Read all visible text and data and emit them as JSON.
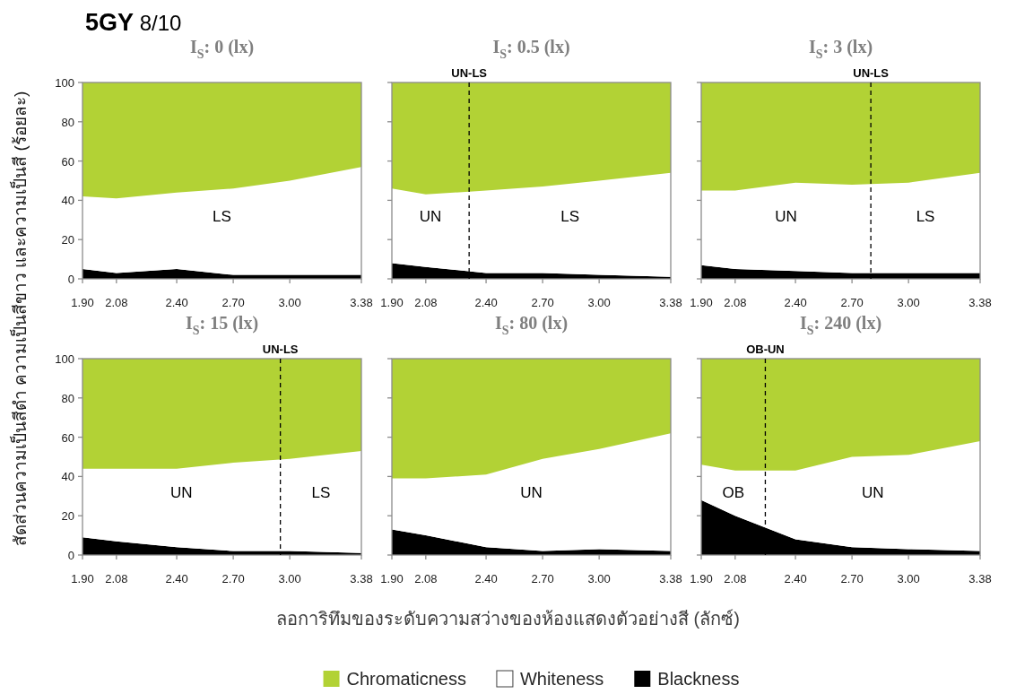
{
  "chart_data": [
    {
      "type": "area",
      "stacked": true,
      "title": "5GY 8/10",
      "subtitle": "I$_{S}$: 0 (lx)",
      "ylabel": "สัดส่วนความเป็นสีดำ ความเป็นสีขาว และความเป็นสี (ร้อยละ)",
      "x": [
        1.9,
        2.08,
        2.4,
        2.7,
        3.0,
        3.38
      ],
      "xlim": [
        1.9,
        3.38
      ],
      "xticks": [
        {
          "value": 1.9,
          "label": "1.90"
        },
        {
          "value": 2.08,
          "label": "2.08"
        },
        {
          "value": 2.4,
          "label": "2.40"
        },
        {
          "value": 2.7,
          "label": "2.70"
        },
        {
          "value": 3.0,
          "label": "3.00"
        },
        {
          "value": 3.38,
          "label": "3.38"
        }
      ],
      "ylim": [
        0,
        100
      ],
      "yticks": [
        0,
        20,
        40,
        60,
        80,
        100
      ],
      "series": [
        {
          "color": "#000000",
          "values": [
            5,
            3,
            5,
            2,
            2,
            2
          ]
        },
        {
          "color": "#ffffff",
          "values": [
            37,
            38,
            39,
            44,
            48,
            55
          ]
        },
        {
          "color": "#b2d235",
          "values": [
            58,
            59,
            56,
            54,
            50,
            43
          ]
        }
      ],
      "annotations": [
        "LS"
      ]
    },
    {
      "type": "area",
      "stacked": true,
      "subtitle": "I$_{S}$: 0.5 (lx)",
      "x": [
        1.9,
        2.08,
        2.4,
        2.7,
        3.0,
        3.38
      ],
      "xlim": [
        1.9,
        3.38
      ],
      "xticks": [
        {
          "value": 1.9,
          "label": "1.90"
        },
        {
          "value": 2.08,
          "label": "2.08"
        },
        {
          "value": 2.4,
          "label": "2.40"
        },
        {
          "value": 2.7,
          "label": "2.70"
        },
        {
          "value": 3.0,
          "label": "3.00"
        },
        {
          "value": 3.38,
          "label": "3.38"
        }
      ],
      "ylim": [
        0,
        100
      ],
      "yticks": [
        0,
        20,
        40,
        60,
        80,
        100
      ],
      "tick_labels": "x",
      "series": [
        {
          "color": "#000000",
          "values": [
            8,
            6,
            3,
            3,
            2,
            1
          ]
        },
        {
          "color": "#ffffff",
          "values": [
            38,
            37,
            42,
            44,
            48,
            53
          ]
        },
        {
          "color": "#b2d235",
          "values": [
            54,
            57,
            55,
            53,
            50,
            46
          ]
        }
      ],
      "ref_lines": [
        {
          "axis": "x",
          "value": 2.31,
          "label": "UN-LS",
          "color": "#000000",
          "line_style": "dashed"
        }
      ],
      "annotations": [
        "UN",
        "LS"
      ]
    },
    {
      "type": "area",
      "stacked": true,
      "subtitle": "I$_{S}$: 3 (lx)",
      "x": [
        1.9,
        2.08,
        2.4,
        2.7,
        3.0,
        3.38
      ],
      "xlim": [
        1.9,
        3.38
      ],
      "xticks": [
        {
          "value": 1.9,
          "label": "1.90"
        },
        {
          "value": 2.08,
          "label": "2.08"
        },
        {
          "value": 2.4,
          "label": "2.40"
        },
        {
          "value": 2.7,
          "label": "2.70"
        },
        {
          "value": 3.0,
          "label": "3.00"
        },
        {
          "value": 3.38,
          "label": "3.38"
        }
      ],
      "ylim": [
        0,
        100
      ],
      "yticks": [
        0,
        20,
        40,
        60,
        80,
        100
      ],
      "tick_labels": "x",
      "series": [
        {
          "color": "#000000",
          "values": [
            7,
            5,
            4,
            3,
            3,
            3
          ]
        },
        {
          "color": "#ffffff",
          "values": [
            38,
            40,
            45,
            45,
            46,
            51
          ]
        },
        {
          "color": "#b2d235",
          "values": [
            55,
            55,
            51,
            52,
            51,
            46
          ]
        }
      ],
      "ref_lines": [
        {
          "axis": "x",
          "value": 2.8,
          "label": "UN-LS",
          "color": "#000000",
          "line_style": "dashed"
        }
      ],
      "annotations": [
        "UN",
        "LS"
      ]
    },
    {
      "type": "area",
      "stacked": true,
      "subtitle": "I$_{S}$: 15 (lx)",
      "x": [
        1.9,
        2.08,
        2.4,
        2.7,
        3.0,
        3.38
      ],
      "xlim": [
        1.9,
        3.38
      ],
      "xticks": [
        {
          "value": 1.9,
          "label": "1.90"
        },
        {
          "value": 2.08,
          "label": "2.08"
        },
        {
          "value": 2.4,
          "label": "2.40"
        },
        {
          "value": 2.7,
          "label": "2.70"
        },
        {
          "value": 3.0,
          "label": "3.00"
        },
        {
          "value": 3.38,
          "label": "3.38"
        }
      ],
      "ylim": [
        0,
        100
      ],
      "yticks": [
        0,
        20,
        40,
        60,
        80,
        100
      ],
      "series": [
        {
          "color": "#000000",
          "values": [
            9,
            7,
            4,
            2,
            2,
            1
          ]
        },
        {
          "color": "#ffffff",
          "values": [
            35,
            37,
            40,
            45,
            47,
            52
          ]
        },
        {
          "color": "#b2d235",
          "values": [
            56,
            56,
            56,
            53,
            51,
            47
          ]
        }
      ],
      "ref_lines": [
        {
          "axis": "x",
          "value": 2.95,
          "label": "UN-LS",
          "color": "#000000",
          "line_style": "dashed"
        }
      ],
      "annotations": [
        "UN",
        "LS"
      ]
    },
    {
      "type": "area",
      "stacked": true,
      "subtitle": "I$_{S}$: 80 (lx)",
      "xlabel": "ลอการิทึมของระดับความสว่างของห้องแสดงตัวอย่างสี (ลักซ์)",
      "x": [
        1.9,
        2.08,
        2.4,
        2.7,
        3.0,
        3.38
      ],
      "xlim": [
        1.9,
        3.38
      ],
      "xticks": [
        {
          "value": 1.9,
          "label": "1.90"
        },
        {
          "value": 2.08,
          "label": "2.08"
        },
        {
          "value": 2.4,
          "label": "2.40"
        },
        {
          "value": 2.7,
          "label": "2.70"
        },
        {
          "value": 3.0,
          "label": "3.00"
        },
        {
          "value": 3.38,
          "label": "3.38"
        }
      ],
      "ylim": [
        0,
        100
      ],
      "yticks": [
        0,
        20,
        40,
        60,
        80,
        100
      ],
      "tick_labels": "x",
      "legend": "bottom",
      "series": [
        {
          "name": "Blackness",
          "color": "#000000",
          "values": [
            13,
            10,
            4,
            2,
            3,
            2
          ]
        },
        {
          "name": "Whiteness",
          "color": "#ffffff",
          "values": [
            26,
            29,
            37,
            47,
            51,
            60
          ]
        },
        {
          "name": "Chromaticness",
          "color": "#b2d235",
          "values": [
            61,
            61,
            59,
            51,
            46,
            38
          ]
        }
      ],
      "annotations": [
        "UN"
      ]
    },
    {
      "type": "area",
      "stacked": true,
      "subtitle": "I$_{S}$: 240 (lx)",
      "x": [
        1.9,
        2.08,
        2.4,
        2.7,
        3.0,
        3.38
      ],
      "xlim": [
        1.9,
        3.38
      ],
      "xticks": [
        {
          "value": 1.9,
          "label": "1.90"
        },
        {
          "value": 2.08,
          "label": "2.08"
        },
        {
          "value": 2.4,
          "label": "2.40"
        },
        {
          "value": 2.7,
          "label": "2.70"
        },
        {
          "value": 3.0,
          "label": "3.00"
        },
        {
          "value": 3.38,
          "label": "3.38"
        }
      ],
      "ylim": [
        0,
        100
      ],
      "yticks": [
        0,
        20,
        40,
        60,
        80,
        100
      ],
      "tick_labels": "x",
      "series": [
        {
          "color": "#000000",
          "values": [
            28,
            20,
            8,
            4,
            3,
            2
          ]
        },
        {
          "color": "#ffffff",
          "values": [
            18,
            23,
            35,
            46,
            48,
            56
          ]
        },
        {
          "color": "#b2d235",
          "values": [
            54,
            57,
            57,
            50,
            49,
            42
          ]
        }
      ],
      "ref_lines": [
        {
          "axis": "x",
          "value": 2.24,
          "label": "OB-UN",
          "color": "#000000",
          "line_style": "dashed"
        }
      ],
      "annotations": [
        "OB",
        "UN"
      ]
    }
  ]
}
